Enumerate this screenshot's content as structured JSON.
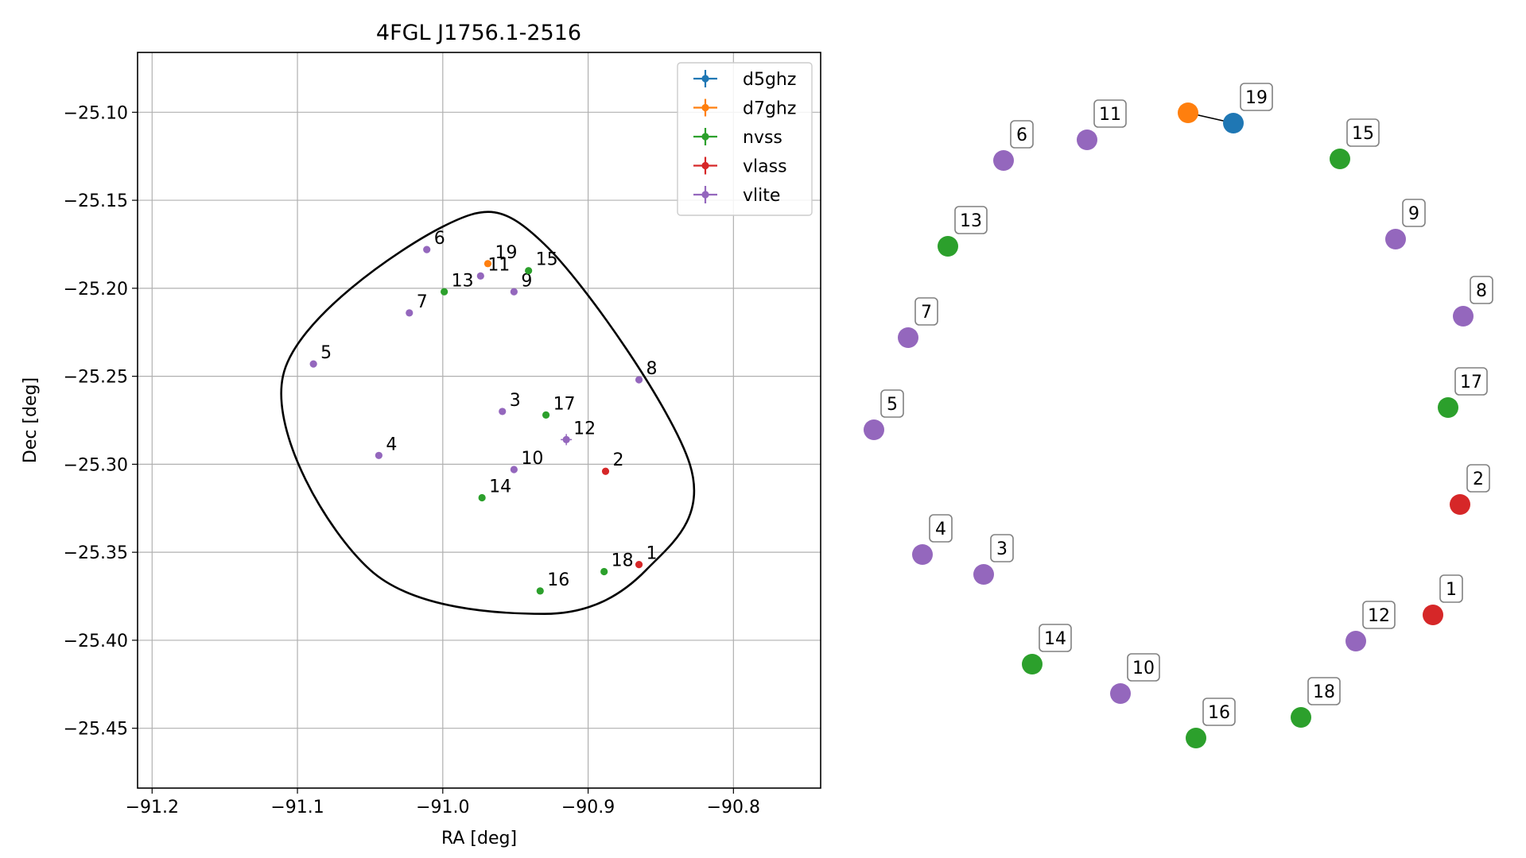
{
  "chart_data": [
    {
      "type": "scatter",
      "title": "4FGL J1756.1-2516",
      "xlabel": "RA [deg]",
      "ylabel": "Dec [deg]",
      "xlim": [
        -91.21,
        -90.74
      ],
      "ylim": [
        -25.484,
        -25.066
      ],
      "x_direction": "increasing-right",
      "y_direction": "increasing-up",
      "grid": true,
      "legend_placement": "top-right",
      "xticks": [
        -91.2,
        -91.1,
        -91.0,
        -90.9,
        -90.8
      ],
      "xtick_labels": [
        "−91.2",
        "−91.1",
        "−91.0",
        "−90.9",
        "−90.8"
      ],
      "yticks": [
        -25.1,
        -25.15,
        -25.2,
        -25.25,
        -25.3,
        -25.35,
        -25.4,
        -25.45
      ],
      "ytick_labels": [
        "−25.10",
        "−25.15",
        "−25.20",
        "−25.25",
        "−25.30",
        "−25.35",
        "−25.40",
        "−25.45"
      ],
      "ellipse": {
        "center": [
          -90.98,
          -25.274
        ],
        "outline_color": "#000000",
        "boundary": [
          [
            -91.11,
            -25.25
          ],
          [
            -91.0,
            -25.165
          ],
          [
            -90.93,
            -25.175
          ],
          [
            -90.83,
            -25.3
          ],
          [
            -90.86,
            -25.36
          ],
          [
            -90.93,
            -25.385
          ],
          [
            -91.05,
            -25.36
          ]
        ]
      },
      "series": [
        {
          "name": "d5ghz",
          "color": "#1f77b4"
        },
        {
          "name": "d7ghz",
          "color": "#ff7f0e"
        },
        {
          "name": "nvss",
          "color": "#2ca02c"
        },
        {
          "name": "vlass",
          "color": "#d62728"
        },
        {
          "name": "vlite",
          "color": "#9467bd"
        }
      ],
      "points": [
        {
          "label": "1",
          "series": "vlass",
          "x": -90.865,
          "y": -25.357
        },
        {
          "label": "2",
          "series": "vlass",
          "x": -90.888,
          "y": -25.304
        },
        {
          "label": "3",
          "series": "vlite",
          "x": -90.959,
          "y": -25.27
        },
        {
          "label": "4",
          "series": "vlite",
          "x": -91.044,
          "y": -25.295
        },
        {
          "label": "5",
          "series": "vlite",
          "x": -91.089,
          "y": -25.243
        },
        {
          "label": "6",
          "series": "vlite",
          "x": -91.011,
          "y": -25.178
        },
        {
          "label": "7",
          "series": "vlite",
          "x": -91.023,
          "y": -25.214
        },
        {
          "label": "8",
          "series": "vlite",
          "x": -90.865,
          "y": -25.252
        },
        {
          "label": "9",
          "series": "vlite",
          "x": -90.951,
          "y": -25.202
        },
        {
          "label": "10",
          "series": "vlite",
          "x": -90.951,
          "y": -25.303
        },
        {
          "label": "11",
          "series": "vlite",
          "x": -90.974,
          "y": -25.193
        },
        {
          "label": "12",
          "series": "vlite",
          "x": -90.915,
          "y": -25.286
        },
        {
          "label": "13",
          "series": "nvss",
          "x": -90.999,
          "y": -25.202
        },
        {
          "label": "14",
          "series": "nvss",
          "x": -90.973,
          "y": -25.319
        },
        {
          "label": "15",
          "series": "nvss",
          "x": -90.941,
          "y": -25.19
        },
        {
          "label": "16",
          "series": "nvss",
          "x": -90.933,
          "y": -25.372
        },
        {
          "label": "17",
          "series": "nvss",
          "x": -90.929,
          "y": -25.272
        },
        {
          "label": "18",
          "series": "nvss",
          "x": -90.889,
          "y": -25.361
        },
        {
          "label": "19",
          "series": "d7ghz",
          "x": -90.969,
          "y": -25.186
        }
      ]
    },
    {
      "type": "network",
      "nodes": [
        {
          "label": "19",
          "series": "d5ghz"
        },
        {
          "label": "",
          "series": "d7ghz"
        },
        {
          "label": "11",
          "series": "vlite"
        },
        {
          "label": "15",
          "series": "nvss"
        },
        {
          "label": "6",
          "series": "vlite"
        },
        {
          "label": "9",
          "series": "vlite"
        },
        {
          "label": "13",
          "series": "nvss"
        },
        {
          "label": "8",
          "series": "vlite"
        },
        {
          "label": "7",
          "series": "vlite"
        },
        {
          "label": "17",
          "series": "nvss"
        },
        {
          "label": "5",
          "series": "vlite"
        },
        {
          "label": "2",
          "series": "vlass"
        },
        {
          "label": "4",
          "series": "vlite"
        },
        {
          "label": "3",
          "series": "vlite"
        },
        {
          "label": "1",
          "series": "vlass"
        },
        {
          "label": "12",
          "series": "vlite"
        },
        {
          "label": "14",
          "series": "nvss"
        },
        {
          "label": "18",
          "series": "nvss"
        },
        {
          "label": "10",
          "series": "vlite"
        },
        {
          "label": "16",
          "series": "nvss"
        }
      ],
      "edges": [
        [
          0,
          1
        ]
      ]
    }
  ]
}
